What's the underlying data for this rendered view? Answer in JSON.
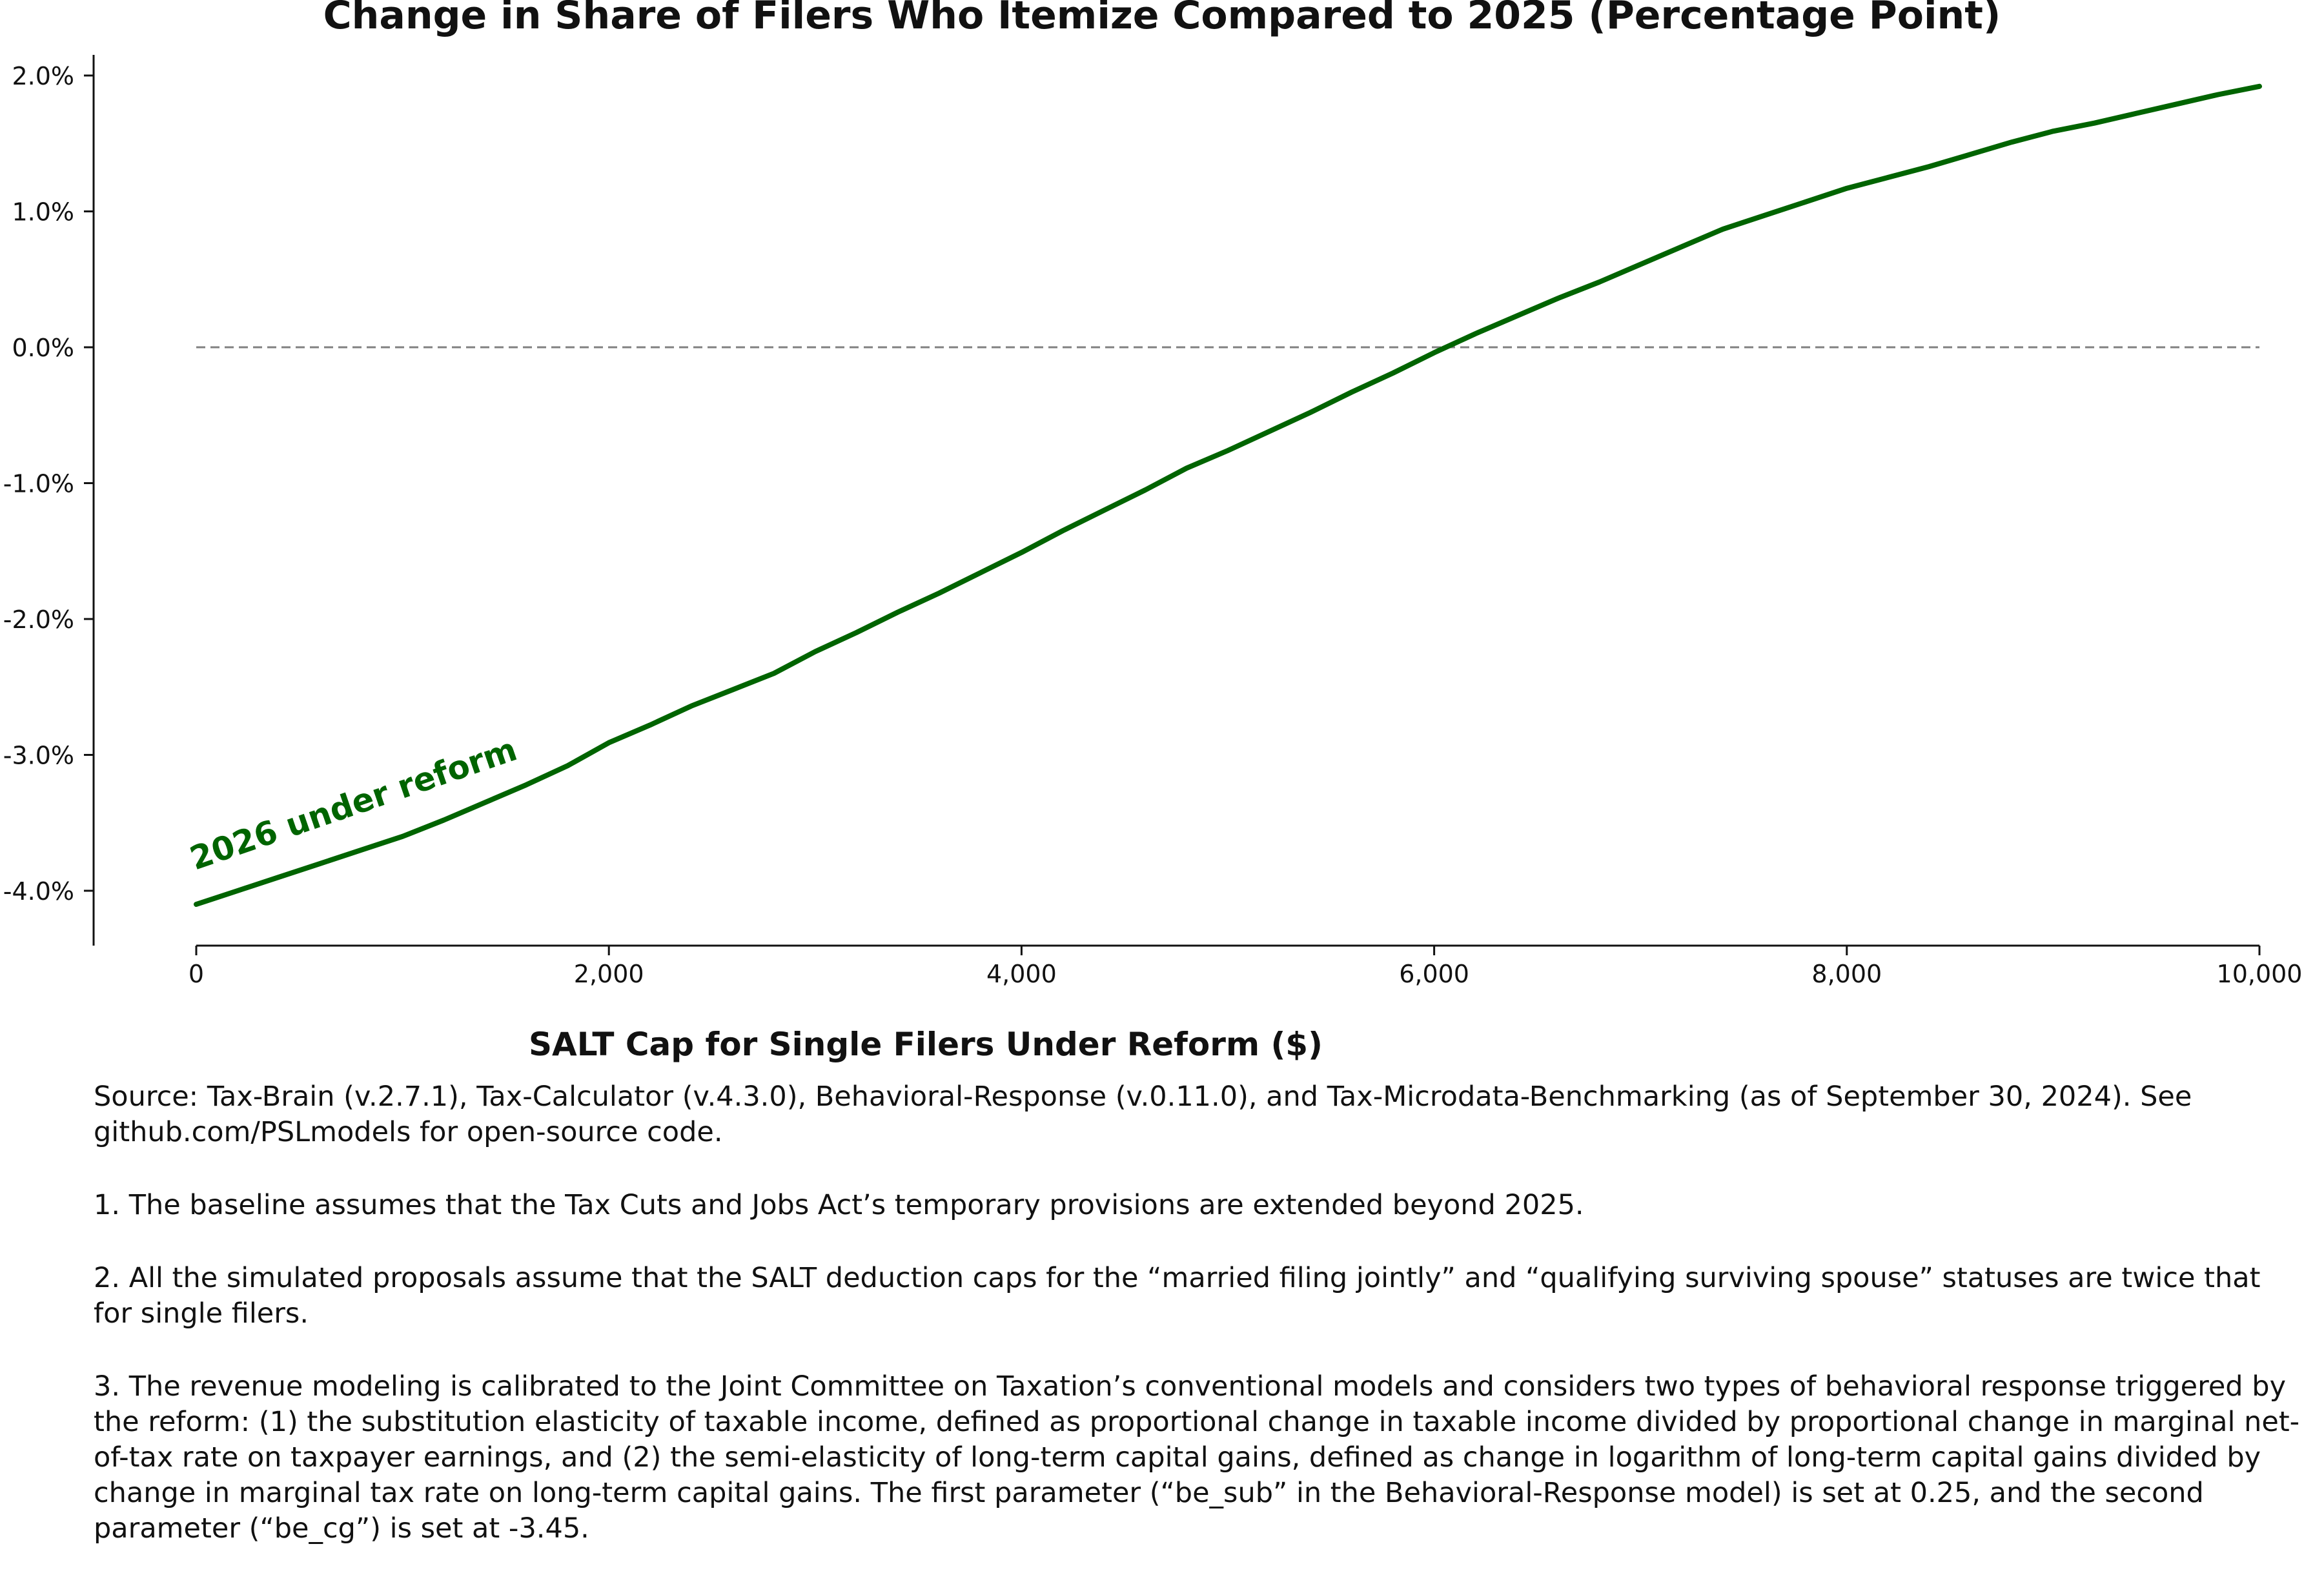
{
  "chart_data": {
    "type": "line",
    "title": "Change in Share of Filers Who Itemize Compared to 2025 (Percentage Point)",
    "xlabel": "SALT Cap for Single Filers Under Reform ($)",
    "ylabel": "",
    "xlim": [
      -500,
      10000
    ],
    "ylim": [
      -4.4,
      2.1
    ],
    "x_ticks": [
      0,
      2000,
      4000,
      6000,
      8000,
      10000
    ],
    "x_tick_labels": [
      "0",
      "2,000",
      "4,000",
      "6,000",
      "8,000",
      "10,000"
    ],
    "y_ticks": [
      2.0,
      1.0,
      0.0,
      -1.0,
      -2.0,
      -3.0,
      -4.0
    ],
    "y_tick_labels": [
      "2.0%",
      "1.0%",
      "0.0%",
      "-1.0%",
      "-2.0%",
      "-3.0%",
      "-4.0%"
    ],
    "grid": false,
    "reference_line": {
      "y": 0.0,
      "style": "dashed",
      "color": "#808080"
    },
    "series": [
      {
        "name": "2026 under reform",
        "color": "#006400",
        "x": [
          0,
          200,
          400,
          600,
          800,
          1000,
          1200,
          1400,
          1600,
          1800,
          2000,
          2200,
          2400,
          2600,
          2800,
          3000,
          3200,
          3400,
          3600,
          3800,
          4000,
          4200,
          4400,
          4600,
          4800,
          5000,
          5200,
          5400,
          5600,
          5800,
          6000,
          6200,
          6400,
          6600,
          6800,
          7000,
          7200,
          7400,
          7600,
          7800,
          8000,
          8200,
          8400,
          8600,
          8800,
          9000,
          9200,
          9400,
          9600,
          9800,
          10000
        ],
        "y": [
          -4.1,
          -4.0,
          -3.9,
          -3.8,
          -3.7,
          -3.6,
          -3.48,
          -3.35,
          -3.22,
          -3.08,
          -2.91,
          -2.78,
          -2.64,
          -2.52,
          -2.4,
          -2.24,
          -2.1,
          -1.95,
          -1.81,
          -1.66,
          -1.51,
          -1.35,
          -1.2,
          -1.05,
          -0.89,
          -0.76,
          -0.62,
          -0.48,
          -0.33,
          -0.19,
          -0.04,
          0.1,
          0.23,
          0.36,
          0.48,
          0.61,
          0.74,
          0.87,
          0.97,
          1.07,
          1.17,
          1.25,
          1.33,
          1.42,
          1.51,
          1.59,
          1.65,
          1.72,
          1.79,
          1.86,
          1.92
        ]
      }
    ]
  },
  "notes": {
    "source": "Source: Tax-Brain (v.2.7.1), Tax-Calculator (v.4.3.0), Behavioral-Response (v.0.11.0), and Tax-Microdata-Benchmarking (as of September 30, 2024). See github.com/PSLmodels for open-source code.",
    "note1": "1. The baseline assumes that the Tax Cuts and Jobs Act’s temporary provisions are extended beyond 2025.",
    "note2": "2. All the simulated proposals assume that the SALT deduction caps for the “married filing jointly” and “qualifying surviving spouse” statuses are twice that for single filers.",
    "note3": "3. The revenue modeling is calibrated to the Joint Committee on Taxation’s conventional models and considers two types of behavioral response triggered by the reform: (1) the substitution elasticity of taxable income, defined as proportional change in taxable income divided by proportional change in marginal net-of-tax rate on taxpayer earnings, and (2) the semi-elasticity of long-term capital gains, defined as change in logarithm of long-term capital gains divided by change in marginal tax rate on long-term capital gains. The first parameter (“be_sub” in the Behavioral-Response model) is set at 0.25, and the second parameter (“be_cg”) is set at -3.45."
  }
}
